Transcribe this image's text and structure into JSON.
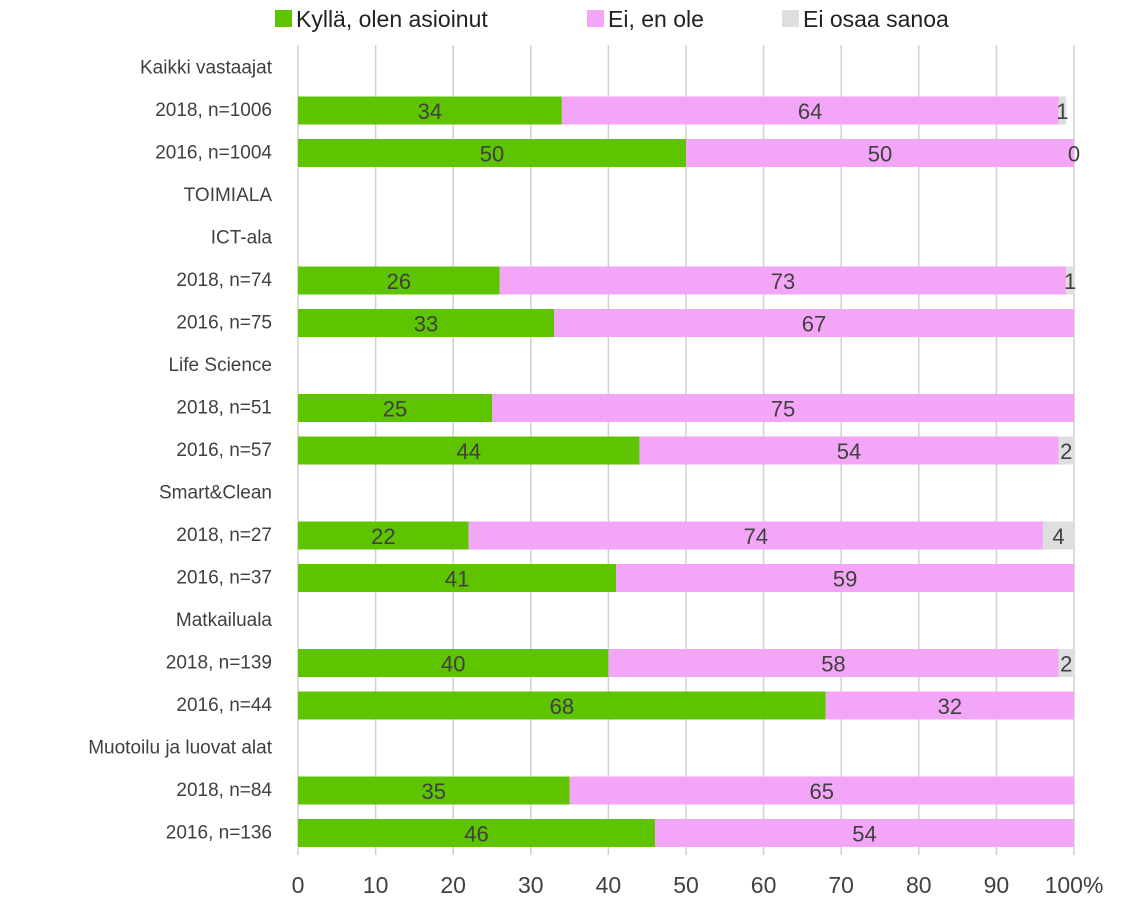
{
  "chart_data": {
    "type": "stacked-bar-horizontal",
    "categories": [
      "Kaikki vastaajat",
      "2018, n=1006",
      "2016, n=1004",
      "TOIMIALA",
      "ICT-ala",
      "2018, n=74",
      "2016, n=75",
      "Life Science",
      "2018, n=51",
      "2016, n=57",
      "Smart&Clean",
      "2018, n=27",
      "2016, n=37",
      "Matkailuala",
      "2018, n=139",
      "2016, n=44",
      "Muotoilu ja luovat alat",
      "2018, n=84",
      "2016, n=136"
    ],
    "series": [
      {
        "name": "Kyllä, olen asioinut",
        "color": "#5fc400",
        "values": [
          null,
          34,
          50,
          null,
          null,
          26,
          33,
          null,
          25,
          44,
          null,
          22,
          41,
          null,
          40,
          68,
          null,
          35,
          46
        ]
      },
      {
        "name": "Ei, en ole",
        "color": "#f3a6f8",
        "values": [
          null,
          64,
          50,
          null,
          null,
          73,
          67,
          null,
          75,
          54,
          null,
          74,
          59,
          null,
          58,
          32,
          null,
          65,
          54
        ]
      },
      {
        "name": "Ei osaa sanoa",
        "color": "#dedede",
        "values": [
          null,
          1,
          0,
          null,
          null,
          1,
          null,
          null,
          null,
          2,
          null,
          4,
          null,
          null,
          2,
          null,
          null,
          null,
          null
        ]
      }
    ],
    "xlim": [
      0,
      100
    ],
    "xticks": [
      0,
      10,
      20,
      30,
      40,
      50,
      60,
      70,
      80,
      90,
      {
        "value": 100,
        "label": "100%"
      }
    ],
    "grid": true,
    "legend": "top"
  }
}
